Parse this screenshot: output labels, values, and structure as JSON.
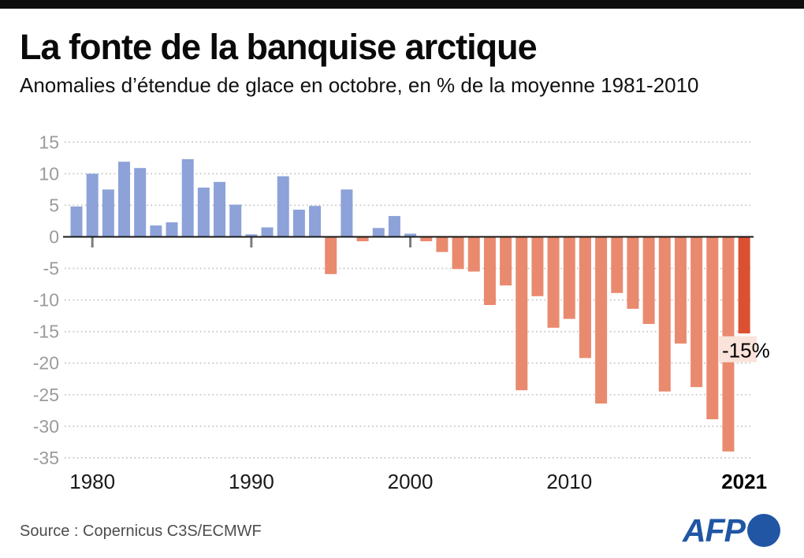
{
  "header": {
    "title": "La fonte de la banquise arctique",
    "subtitle": "Anomalies d’étendue de glace en octobre, en % de la moyenne 1981-2010"
  },
  "chart_data": {
    "type": "bar",
    "title": "La fonte de la banquise arctique",
    "subtitle": "Anomalies d’étendue de glace en octobre, en % de la moyenne 1981-2010",
    "xlabel": "",
    "ylabel": "",
    "unit": "%",
    "x": [
      1979,
      1980,
      1981,
      1982,
      1983,
      1984,
      1985,
      1986,
      1987,
      1988,
      1989,
      1990,
      1991,
      1992,
      1993,
      1994,
      1995,
      1996,
      1997,
      1998,
      1999,
      2000,
      2001,
      2002,
      2003,
      2004,
      2005,
      2006,
      2007,
      2008,
      2009,
      2010,
      2011,
      2012,
      2013,
      2014,
      2015,
      2016,
      2017,
      2018,
      2019,
      2020,
      2021
    ],
    "values": [
      4.8,
      10.0,
      7.5,
      11.9,
      10.9,
      1.8,
      2.3,
      12.3,
      7.8,
      8.7,
      5.1,
      0.4,
      1.5,
      9.6,
      4.3,
      4.9,
      -5.9,
      7.5,
      -0.7,
      1.4,
      3.3,
      0.5,
      -0.7,
      -2.4,
      -5.1,
      -5.5,
      -10.8,
      -7.7,
      -24.3,
      -9.4,
      -14.4,
      -13.0,
      -19.2,
      -26.4,
      -8.9,
      -11.4,
      -13.8,
      -24.5,
      -16.9,
      -23.8,
      -28.9,
      -34.0,
      -15.3
    ],
    "ylim": [
      -35,
      15
    ],
    "yticks": [
      15,
      10,
      5,
      0,
      -5,
      -10,
      -15,
      -20,
      -25,
      -30,
      -35
    ],
    "ytick_labels": [
      "15",
      "10",
      "5",
      "0",
      "-5",
      "-10",
      "-15",
      "-20",
      "-25",
      "-30",
      "-35"
    ],
    "xticks": [
      1980,
      1990,
      2000,
      2010
    ],
    "xtick_labels": [
      "1980",
      "1990",
      "2000",
      "2010"
    ],
    "xtick_label_end": "2021",
    "grid": true,
    "legend": false,
    "annotation": {
      "text": "-15%",
      "year": 2021
    },
    "colors": {
      "positive": "#8ca2d8",
      "negative": "#e98a6e",
      "highlight": "#dc5032",
      "annotation_bg": "#fae3da",
      "grid": "#c4c4c4",
      "zero_line": "#1a1a1a",
      "ytick_text": "#9b9b9b",
      "xtick_text": "#1a1a1a"
    }
  },
  "footer": {
    "source": "Source : Copernicus C3S/ECMWF",
    "logo": {
      "text": "AFP",
      "color": "#2056a4"
    }
  }
}
